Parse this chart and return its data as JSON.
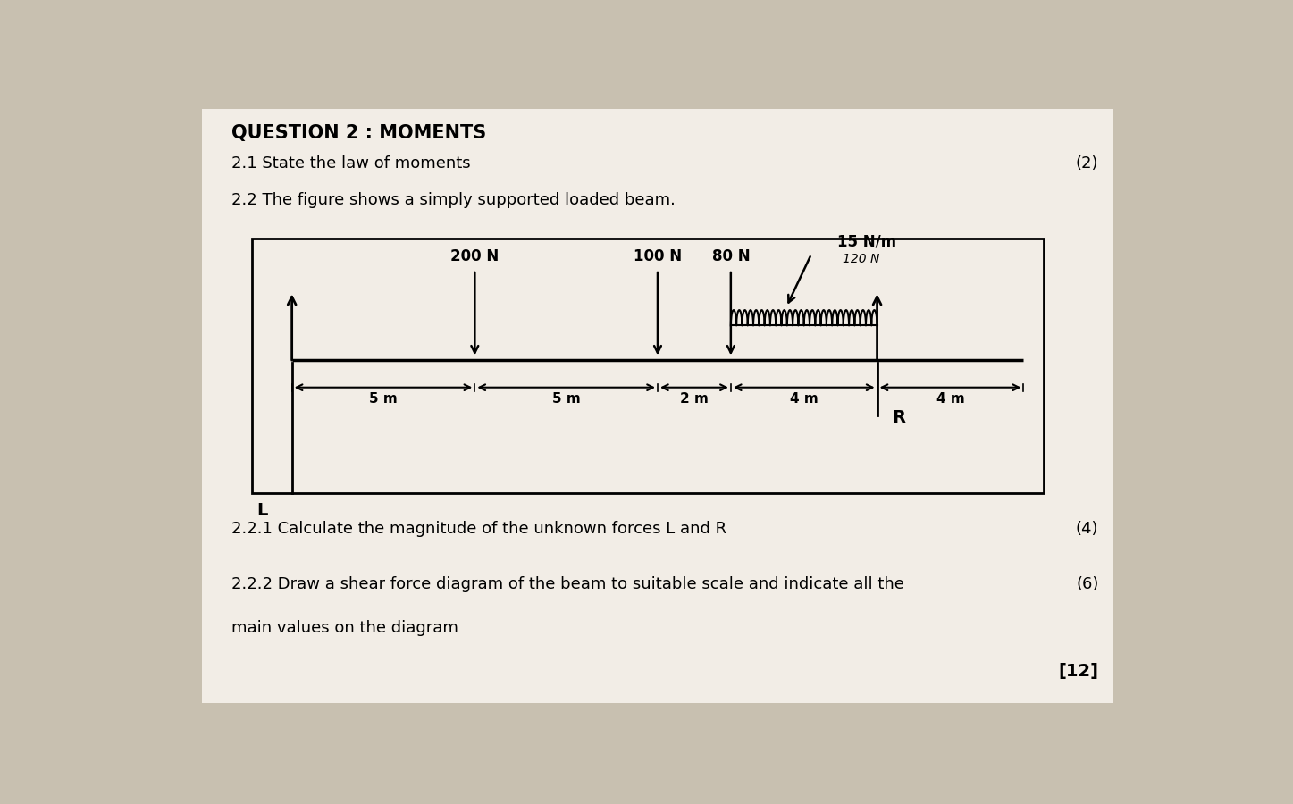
{
  "title": "QUESTION 2 : MOMENTS",
  "bg_color": "#c8c0b0",
  "paper_color": "#e8e4dc",
  "line21": "2.1 State the law of moments",
  "marks21": "(2)",
  "line22": "2.2 The figure shows a simply supported loaded beam.",
  "line221": "2.2.1 Calculate the magnitude of the unknown forces L and R",
  "marks221": "(4)",
  "line222": "2.2.2 Draw a shear force diagram of the beam to suitable scale and indicate all the",
  "line222b": "main values on the diagram",
  "marks222": "(6)",
  "total": "[12]",
  "forces": [
    "200 N",
    "100 N",
    "80 N",
    "15 N/m"
  ],
  "annotation_120": "120 N",
  "distances": [
    "5 m",
    "5 m",
    "2 m",
    "4 m",
    "4 m"
  ],
  "label_L": "L",
  "label_R": "R"
}
